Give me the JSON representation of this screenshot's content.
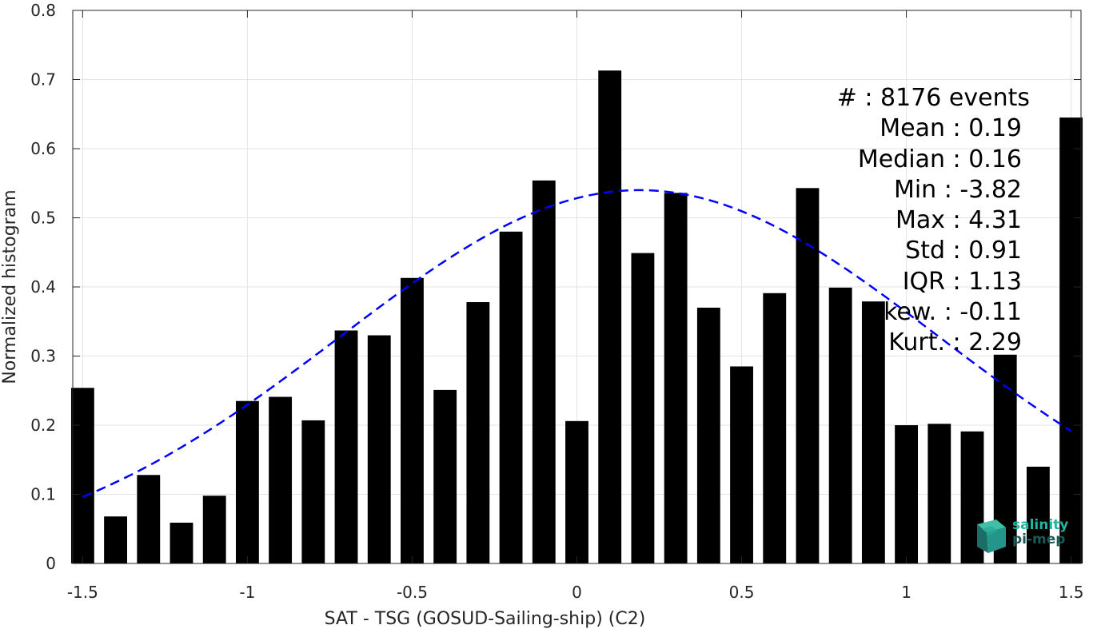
{
  "chart_data": {
    "type": "bar",
    "xlabel": "SAT - TSG (GOSUD-Sailing-ship) (C2)",
    "ylabel": "Normalized histogram",
    "xlim": [
      -1.53,
      1.53
    ],
    "ylim": [
      0,
      0.8
    ],
    "x_ticks": [
      -1.5,
      -1,
      -0.5,
      0,
      0.5,
      1,
      1.5
    ],
    "x_tick_labels": [
      "-1.5",
      "-1",
      "-0.5",
      "0",
      "0.5",
      "1",
      "1.5"
    ],
    "y_ticks": [
      0,
      0.1,
      0.2,
      0.3,
      0.4,
      0.5,
      0.6,
      0.7,
      0.8
    ],
    "y_tick_labels": [
      "0",
      "0.1",
      "0.2",
      "0.3",
      "0.4",
      "0.5",
      "0.6",
      "0.7",
      "0.8"
    ],
    "grid": true,
    "bar_color": "#000000",
    "bar_width": 0.07,
    "series": [
      {
        "x": [
          -1.5,
          -1.4,
          -1.3,
          -1.2,
          -1.1,
          -1.0,
          -0.9,
          -0.8,
          -0.7,
          -0.6,
          -0.5,
          -0.4,
          -0.3,
          -0.2,
          -0.1,
          0.0,
          0.1,
          0.2,
          0.3,
          0.4,
          0.5,
          0.6,
          0.7,
          0.8,
          0.9,
          1.0,
          1.1,
          1.2,
          1.3,
          1.4,
          1.5
        ],
        "values": [
          0.254,
          0.068,
          0.128,
          0.059,
          0.098,
          0.235,
          0.241,
          0.207,
          0.337,
          0.33,
          0.413,
          0.251,
          0.378,
          0.48,
          0.554,
          0.206,
          0.713,
          0.449,
          0.536,
          0.37,
          0.285,
          0.391,
          0.543,
          0.399,
          0.379,
          0.2,
          0.202,
          0.191,
          0.302,
          0.14,
          0.645
        ]
      }
    ],
    "fit_curve": {
      "style": "dashed",
      "color": "#0000ff",
      "mean": 0.19,
      "std": 0.91,
      "peak": 0.54,
      "x_range": [
        -1.5,
        1.5
      ]
    }
  },
  "stats": {
    "events": "#  : 8176 events",
    "mean": "Mean : 0.19",
    "median": "Median : 0.16",
    "min": "Min : -3.82",
    "max": "Max : 4.31",
    "std": "Std : 0.91",
    "iqr": "IQR : 1.13",
    "skew": "kew. : -0.11",
    "kurt": "Kurt. : 2.29"
  },
  "logo": {
    "line1": "salinity",
    "line2": "pi-mep",
    "color1": "#1fb5a0",
    "color2": "#1a5a56"
  }
}
